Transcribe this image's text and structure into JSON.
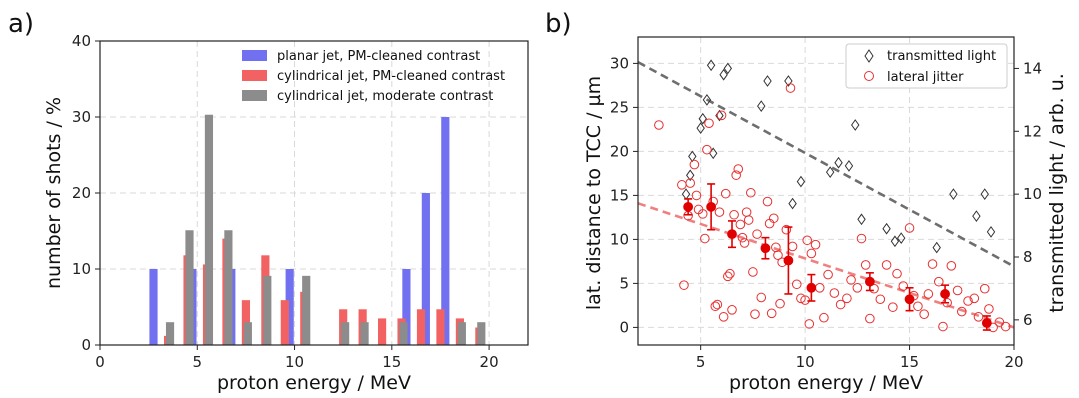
{
  "chart_data": [
    {
      "type": "bar",
      "panel_label": "a)",
      "xlabel": "proton energy / MeV",
      "ylabel": "number of shots / %",
      "xlim": [
        0,
        22
      ],
      "ylim": [
        0,
        40
      ],
      "x_ticks": [
        0,
        5,
        10,
        15,
        20
      ],
      "y_ticks": [
        0,
        10,
        20,
        30,
        40
      ],
      "grid": true,
      "legend_position": "top-right",
      "series": [
        {
          "name": "planar jet, PM-cleaned contrast",
          "color": "#7070f0",
          "points": [
            [
              2.75,
              10
            ],
            [
              4.75,
              10
            ],
            [
              6.75,
              10
            ],
            [
              9.75,
              10
            ],
            [
              15.75,
              10
            ],
            [
              16.75,
              20
            ],
            [
              17.75,
              30
            ]
          ]
        },
        {
          "name": "cylindrical jet, PM-cleaned contrast",
          "color": "#f26262",
          "points": [
            [
              3.5,
              1.2
            ],
            [
              4.5,
              11.8
            ],
            [
              5.5,
              10.6
            ],
            [
              6.5,
              14
            ],
            [
              7.5,
              5.9
            ],
            [
              8.5,
              11.8
            ],
            [
              9.5,
              5.9
            ],
            [
              10.5,
              7
            ],
            [
              12.5,
              4.7
            ],
            [
              13.5,
              4.7
            ],
            [
              14.5,
              3.5
            ],
            [
              15.5,
              3.5
            ],
            [
              16.5,
              4.7
            ],
            [
              17.5,
              4.7
            ],
            [
              18.5,
              3.5
            ],
            [
              19.5,
              2.3
            ]
          ]
        },
        {
          "name": "cylindrical jet, moderate contrast",
          "color": "#8c8c8c",
          "points": [
            [
              3.6,
              3
            ],
            [
              4.6,
              15.1
            ],
            [
              5.6,
              30.3
            ],
            [
              6.6,
              15.1
            ],
            [
              7.6,
              3
            ],
            [
              8.6,
              9.1
            ],
            [
              10.6,
              9.1
            ],
            [
              12.6,
              3
            ],
            [
              13.6,
              3
            ],
            [
              15.6,
              3
            ],
            [
              18.6,
              3
            ],
            [
              19.6,
              3
            ]
          ]
        }
      ]
    },
    {
      "type": "scatter",
      "panel_label": "b)",
      "xlabel": "proton energy / MeV",
      "ylabel": "lat. distance to TCC / µm",
      "y2label": "transmitted light / arb. u.",
      "xlim": [
        2,
        20
      ],
      "ylim": [
        -2,
        33
      ],
      "y2lim": [
        5.2,
        15.0
      ],
      "x_ticks": [
        5,
        10,
        15,
        20
      ],
      "y_ticks": [
        0,
        5,
        10,
        15,
        20,
        25,
        30
      ],
      "y2_ticks": [
        6,
        8,
        10,
        12,
        14
      ],
      "grid": true,
      "legend_position": "top-right",
      "series": [
        {
          "name": "transmitted light",
          "axis": "right",
          "marker": "diamond",
          "color": "#333333",
          "points": [
            [
              4.3,
              10.0
            ],
            [
              4.5,
              10.6
            ],
            [
              4.6,
              11.2
            ],
            [
              5.0,
              12.1
            ],
            [
              5.1,
              12.4
            ],
            [
              5.3,
              13.0
            ],
            [
              5.5,
              14.1
            ],
            [
              5.6,
              11.3
            ],
            [
              5.9,
              12.5
            ],
            [
              6.1,
              13.8
            ],
            [
              6.3,
              14.0
            ],
            [
              7.9,
              12.8
            ],
            [
              8.2,
              13.6
            ],
            [
              9.2,
              13.6
            ],
            [
              9.4,
              9.7
            ],
            [
              9.8,
              10.4
            ],
            [
              11.2,
              10.7
            ],
            [
              11.6,
              11.0
            ],
            [
              12.1,
              10.9
            ],
            [
              12.4,
              12.2
            ],
            [
              12.7,
              9.2
            ],
            [
              13.9,
              8.9
            ],
            [
              14.3,
              8.5
            ],
            [
              14.6,
              8.6
            ],
            [
              16.3,
              8.3
            ],
            [
              17.1,
              10.0
            ],
            [
              18.2,
              9.3
            ],
            [
              18.6,
              10.0
            ],
            [
              18.9,
              8.8
            ]
          ]
        },
        {
          "name": "lateral jitter",
          "axis": "left",
          "marker": "open-circle",
          "color": "#e83030",
          "points": [
            [
              3.0,
              23.0
            ],
            [
              4.1,
              16.2
            ],
            [
              4.2,
              4.8
            ],
            [
              4.4,
              12.7
            ],
            [
              4.5,
              16.4
            ],
            [
              4.7,
              18.5
            ],
            [
              4.8,
              15.0
            ],
            [
              4.9,
              13.4
            ],
            [
              5.1,
              12.9
            ],
            [
              5.2,
              10.1
            ],
            [
              5.3,
              20.2
            ],
            [
              5.4,
              23.2
            ],
            [
              5.6,
              14.3
            ],
            [
              5.7,
              2.4
            ],
            [
              5.8,
              2.6
            ],
            [
              5.9,
              13.1
            ],
            [
              6.0,
              24.1
            ],
            [
              6.1,
              1.2
            ],
            [
              6.2,
              15.2
            ],
            [
              6.3,
              5.8
            ],
            [
              6.4,
              6.1
            ],
            [
              6.5,
              2.0
            ],
            [
              6.6,
              12.8
            ],
            [
              6.7,
              17.3
            ],
            [
              6.8,
              18.0
            ],
            [
              6.9,
              11.7
            ],
            [
              7.0,
              10.2
            ],
            [
              7.1,
              9.6
            ],
            [
              7.2,
              13.1
            ],
            [
              7.3,
              12.2
            ],
            [
              7.4,
              15.3
            ],
            [
              7.5,
              6.3
            ],
            [
              7.6,
              1.5
            ],
            [
              7.7,
              10.6
            ],
            [
              7.9,
              3.4
            ],
            [
              8.2,
              14.3
            ],
            [
              8.3,
              11.8
            ],
            [
              8.4,
              1.6
            ],
            [
              8.5,
              12.4
            ],
            [
              8.6,
              9.1
            ],
            [
              8.7,
              8.2
            ],
            [
              8.8,
              2.7
            ],
            [
              8.9,
              7.4
            ],
            [
              9.1,
              11.1
            ],
            [
              9.3,
              27.2
            ],
            [
              9.4,
              9.2
            ],
            [
              9.6,
              4.9
            ],
            [
              9.8,
              3.3
            ],
            [
              10.0,
              3.1
            ],
            [
              10.1,
              9.9
            ],
            [
              10.2,
              0.4
            ],
            [
              10.3,
              8.4
            ],
            [
              10.5,
              9.4
            ],
            [
              10.7,
              4.5
            ],
            [
              10.9,
              1.1
            ],
            [
              11.1,
              6.0
            ],
            [
              11.4,
              3.9
            ],
            [
              11.7,
              2.6
            ],
            [
              12.0,
              3.3
            ],
            [
              12.2,
              5.4
            ],
            [
              12.5,
              4.5
            ],
            [
              12.7,
              10.1
            ],
            [
              12.9,
              7.1
            ],
            [
              13.1,
              1.0
            ],
            [
              13.3,
              4.4
            ],
            [
              13.6,
              3.2
            ],
            [
              13.9,
              7.1
            ],
            [
              14.2,
              2.3
            ],
            [
              14.4,
              6.1
            ],
            [
              14.7,
              4.7
            ],
            [
              15.0,
              11.3
            ],
            [
              15.2,
              3.6
            ],
            [
              15.4,
              2.4
            ],
            [
              15.7,
              1.5
            ],
            [
              15.9,
              3.8
            ],
            [
              16.1,
              7.2
            ],
            [
              16.4,
              5.2
            ],
            [
              16.6,
              0.1
            ],
            [
              16.8,
              2.8
            ],
            [
              17.0,
              7.0
            ],
            [
              17.3,
              4.2
            ],
            [
              17.5,
              1.8
            ],
            [
              17.8,
              3.0
            ],
            [
              18.1,
              3.3
            ],
            [
              18.3,
              1.2
            ],
            [
              18.6,
              4.4
            ],
            [
              18.8,
              2.1
            ],
            [
              19.0,
              0.0
            ],
            [
              19.3,
              0.6
            ],
            [
              19.6,
              0.1
            ]
          ]
        },
        {
          "name": "",
          "axis": "left",
          "marker": "filled-circle",
          "color": "#e00000",
          "points": [
            [
              4.4,
              13.7
            ],
            [
              5.5,
              13.7
            ],
            [
              6.5,
              10.6
            ],
            [
              8.1,
              9.0
            ],
            [
              9.2,
              7.6
            ],
            [
              10.3,
              4.5
            ],
            [
              13.1,
              5.2
            ],
            [
              15.0,
              3.2
            ],
            [
              16.7,
              3.8
            ],
            [
              18.7,
              0.5
            ]
          ],
          "errors": [
            0.9,
            2.6,
            1.5,
            1.2,
            3.8,
            1.5,
            1.0,
            1.3,
            1.0,
            0.8
          ]
        }
      ],
      "fit_lines": [
        {
          "axis": "right",
          "style": "dashed",
          "color": "#6e6e6e",
          "x": [
            2,
            20
          ],
          "y": [
            14.2,
            7.7
          ]
        },
        {
          "axis": "left",
          "style": "dashed",
          "color": "#f08080",
          "x": [
            2,
            20
          ],
          "y": [
            14.1,
            0.0
          ]
        }
      ]
    }
  ]
}
